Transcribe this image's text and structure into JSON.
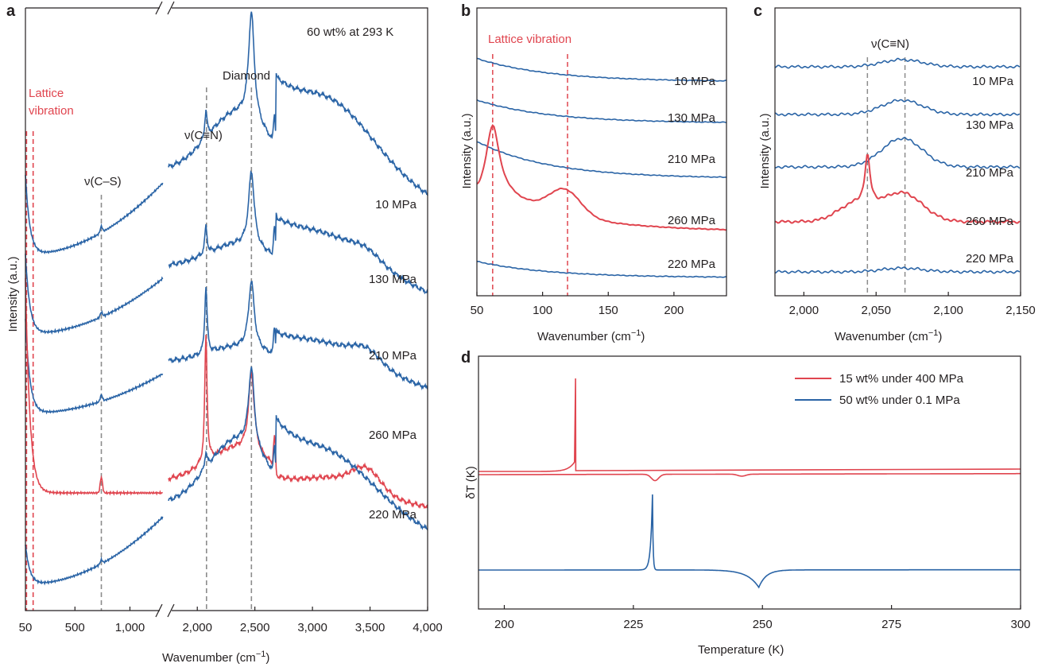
{
  "colors": {
    "blue": "#2a64a6",
    "red": "#e0454f",
    "guide_gray": "#8c8c8c",
    "guide_red": "#e0454f",
    "axis": "#231f20"
  },
  "panels": {
    "a": {
      "label": "a",
      "annotation": "60 wt% at 293 K",
      "xlabel": "Wavenumber (cm",
      "xlabel_sup": "−1",
      "xlabel_end": ")",
      "ylabel": "Intensity (a.u.)",
      "peak_labels": {
        "lattice_line1": "Lattice",
        "lattice_line2": "vibration",
        "cs": "ν(C–S)",
        "cn": "ν(C≡N)",
        "diamond": "Diamond"
      }
    },
    "b": {
      "label": "b",
      "annotation": "Lattice vibration",
      "xlabel": "Wavenumber (cm",
      "xlabel_sup": "−1",
      "xlabel_end": ")",
      "ylabel": "Intensity (a.u.)"
    },
    "c": {
      "label": "c",
      "annotation": "ν(C≡N)",
      "xlabel": "Wavenumber (cm",
      "xlabel_sup": "−1",
      "xlabel_end": ")",
      "ylabel": "Intensity (a.u.)"
    },
    "d": {
      "label": "d",
      "xlabel": "Temperature (K)",
      "ylabel": "δT (K)"
    }
  },
  "chart_data": [
    {
      "panel": "a",
      "type": "line",
      "title": "60 wt% at 293 K",
      "xlabel": "Wavenumber (cm−1)",
      "ylabel": "Intensity (a.u.)",
      "x_axis": "broken",
      "xlim_left": [
        50,
        1300
      ],
      "xlim_right": [
        1750,
        4000
      ],
      "x_ticks": [
        {
          "v": 50,
          "t": "50"
        },
        {
          "v": 500,
          "t": "500"
        },
        {
          "v": 1000,
          "t": "1,000"
        },
        {
          "v": 2000,
          "t": "2,000"
        },
        {
          "v": 2500,
          "t": "2,500"
        },
        {
          "v": 3000,
          "t": "3,000"
        },
        {
          "v": 3500,
          "t": "3,500"
        },
        {
          "v": 4000,
          "t": "4,000"
        }
      ],
      "guides": [
        {
          "x": 60,
          "color": "red"
        },
        {
          "x": 120,
          "color": "red"
        },
        {
          "x": 740,
          "color": "gray"
        },
        {
          "x": 2080,
          "color": "gray"
        },
        {
          "x": 2470,
          "color": "gray"
        }
      ],
      "series": [
        {
          "name": "10 MPa",
          "color": "blue",
          "offset": 4.0,
          "slope": 0.9,
          "cs": 0.08,
          "cn": 0.35,
          "dia": 1.35,
          "broad": [
            0.8,
            0.7,
            0.0
          ],
          "lattice": 1.0
        },
        {
          "name": "130 MPa",
          "color": "blue",
          "offset": 3.0,
          "slope": 0.7,
          "cs": 0.06,
          "cn": 0.35,
          "dia": 0.95,
          "broad": [
            0.3,
            0.3,
            0.1
          ],
          "lattice": 1.0
        },
        {
          "name": "210 MPa",
          "color": "blue",
          "offset": 2.0,
          "slope": 0.5,
          "cs": 0.08,
          "cn": 0.85,
          "dia": 0.85,
          "broad": [
            0.2,
            0.25,
            0.15
          ],
          "lattice": 1.2
        },
        {
          "name": "260 MPa",
          "color": "red",
          "offset": 1.0,
          "slope": 0.0,
          "cs": 0.2,
          "cn": 1.6,
          "dia": 1.0,
          "broad": [
            0.45,
            0.35,
            0.25
          ],
          "lattice": 2.7
        },
        {
          "name": "220 MPa",
          "color": "blue",
          "offset": -0.15,
          "slope": 0.85,
          "cs": 0.05,
          "cn": 0.2,
          "dia": 1.0,
          "broad": [
            0.9,
            0.5,
            0.0
          ],
          "lattice": 0.5
        }
      ]
    },
    {
      "panel": "b",
      "type": "line",
      "xlabel": "Wavenumber (cm−1)",
      "ylabel": "Intensity (a.u.)",
      "xlim": [
        50,
        240
      ],
      "x_ticks": [
        {
          "v": 50,
          "t": "50"
        },
        {
          "v": 100,
          "t": "100"
        },
        {
          "v": 150,
          "t": "150"
        },
        {
          "v": 200,
          "t": "200"
        }
      ],
      "guides": [
        {
          "x": 62,
          "color": "red"
        },
        {
          "x": 119,
          "color": "red"
        }
      ],
      "series": [
        {
          "name": "10 MPa",
          "color": "blue",
          "offset": 4.3,
          "decay": 0.5,
          "p1": 0,
          "p2": 0
        },
        {
          "name": "130 MPa",
          "color": "blue",
          "offset": 3.4,
          "decay": 0.5,
          "p1": 0,
          "p2": 0
        },
        {
          "name": "210 MPa",
          "color": "blue",
          "offset": 2.2,
          "decay": 0.8,
          "p1": 0,
          "p2": 0
        },
        {
          "name": "260 MPa",
          "color": "red",
          "offset": 1.05,
          "decay": 1.2,
          "p1": 1.4,
          "p2": 0.55
        },
        {
          "name": "220 MPa",
          "color": "blue",
          "offset": 0.05,
          "decay": 0.35,
          "p1": 0,
          "p2": 0
        }
      ]
    },
    {
      "panel": "c",
      "type": "line",
      "xlabel": "Wavenumber (cm−1)",
      "ylabel": "Intensity (a.u.)",
      "xlim": [
        1980,
        2150
      ],
      "x_ticks": [
        {
          "v": 2000,
          "t": "2,000"
        },
        {
          "v": 2050,
          "t": "2,050"
        },
        {
          "v": 2100,
          "t": "2,100"
        },
        {
          "v": 2150,
          "t": "2,150"
        }
      ],
      "guides": [
        {
          "x": 2044,
          "color": "gray"
        },
        {
          "x": 2070,
          "color": "gray"
        }
      ],
      "series": [
        {
          "name": "10 MPa",
          "color": "blue",
          "offset": 4.3,
          "sharp": 0,
          "broad": 0.15
        },
        {
          "name": "130 MPa",
          "color": "blue",
          "offset": 3.3,
          "sharp": 0,
          "broad": 0.3
        },
        {
          "name": "210 MPa",
          "color": "blue",
          "offset": 2.2,
          "sharp": 0,
          "broad": 0.6
        },
        {
          "name": "260 MPa",
          "color": "red",
          "offset": 1.05,
          "sharp": 1.0,
          "broad": 0.6
        },
        {
          "name": "220 MPa",
          "color": "blue",
          "offset": 0.0,
          "sharp": 0,
          "broad": 0.08
        }
      ]
    },
    {
      "panel": "d",
      "type": "line",
      "xlabel": "Temperature (K)",
      "ylabel": "δT (K)",
      "xlim": [
        195,
        300
      ],
      "x_ticks": [
        {
          "v": 200,
          "t": "200"
        },
        {
          "v": 225,
          "t": "225"
        },
        {
          "v": 250,
          "t": "250"
        },
        {
          "v": 275,
          "t": "275"
        },
        {
          "v": 300,
          "t": "300"
        }
      ],
      "legend_position": "top-right",
      "series": [
        {
          "name": "15 wt% under 400 MPa",
          "color": "red",
          "cooling_peak_T": 213.8,
          "melting_dip_T": 229.2,
          "small_dip_T": 246.0
        },
        {
          "name": "50 wt% under 0.1 MPa",
          "color": "blue",
          "cooling_peak_T": 228.7,
          "melting_dip_T": 249.3
        }
      ]
    }
  ]
}
